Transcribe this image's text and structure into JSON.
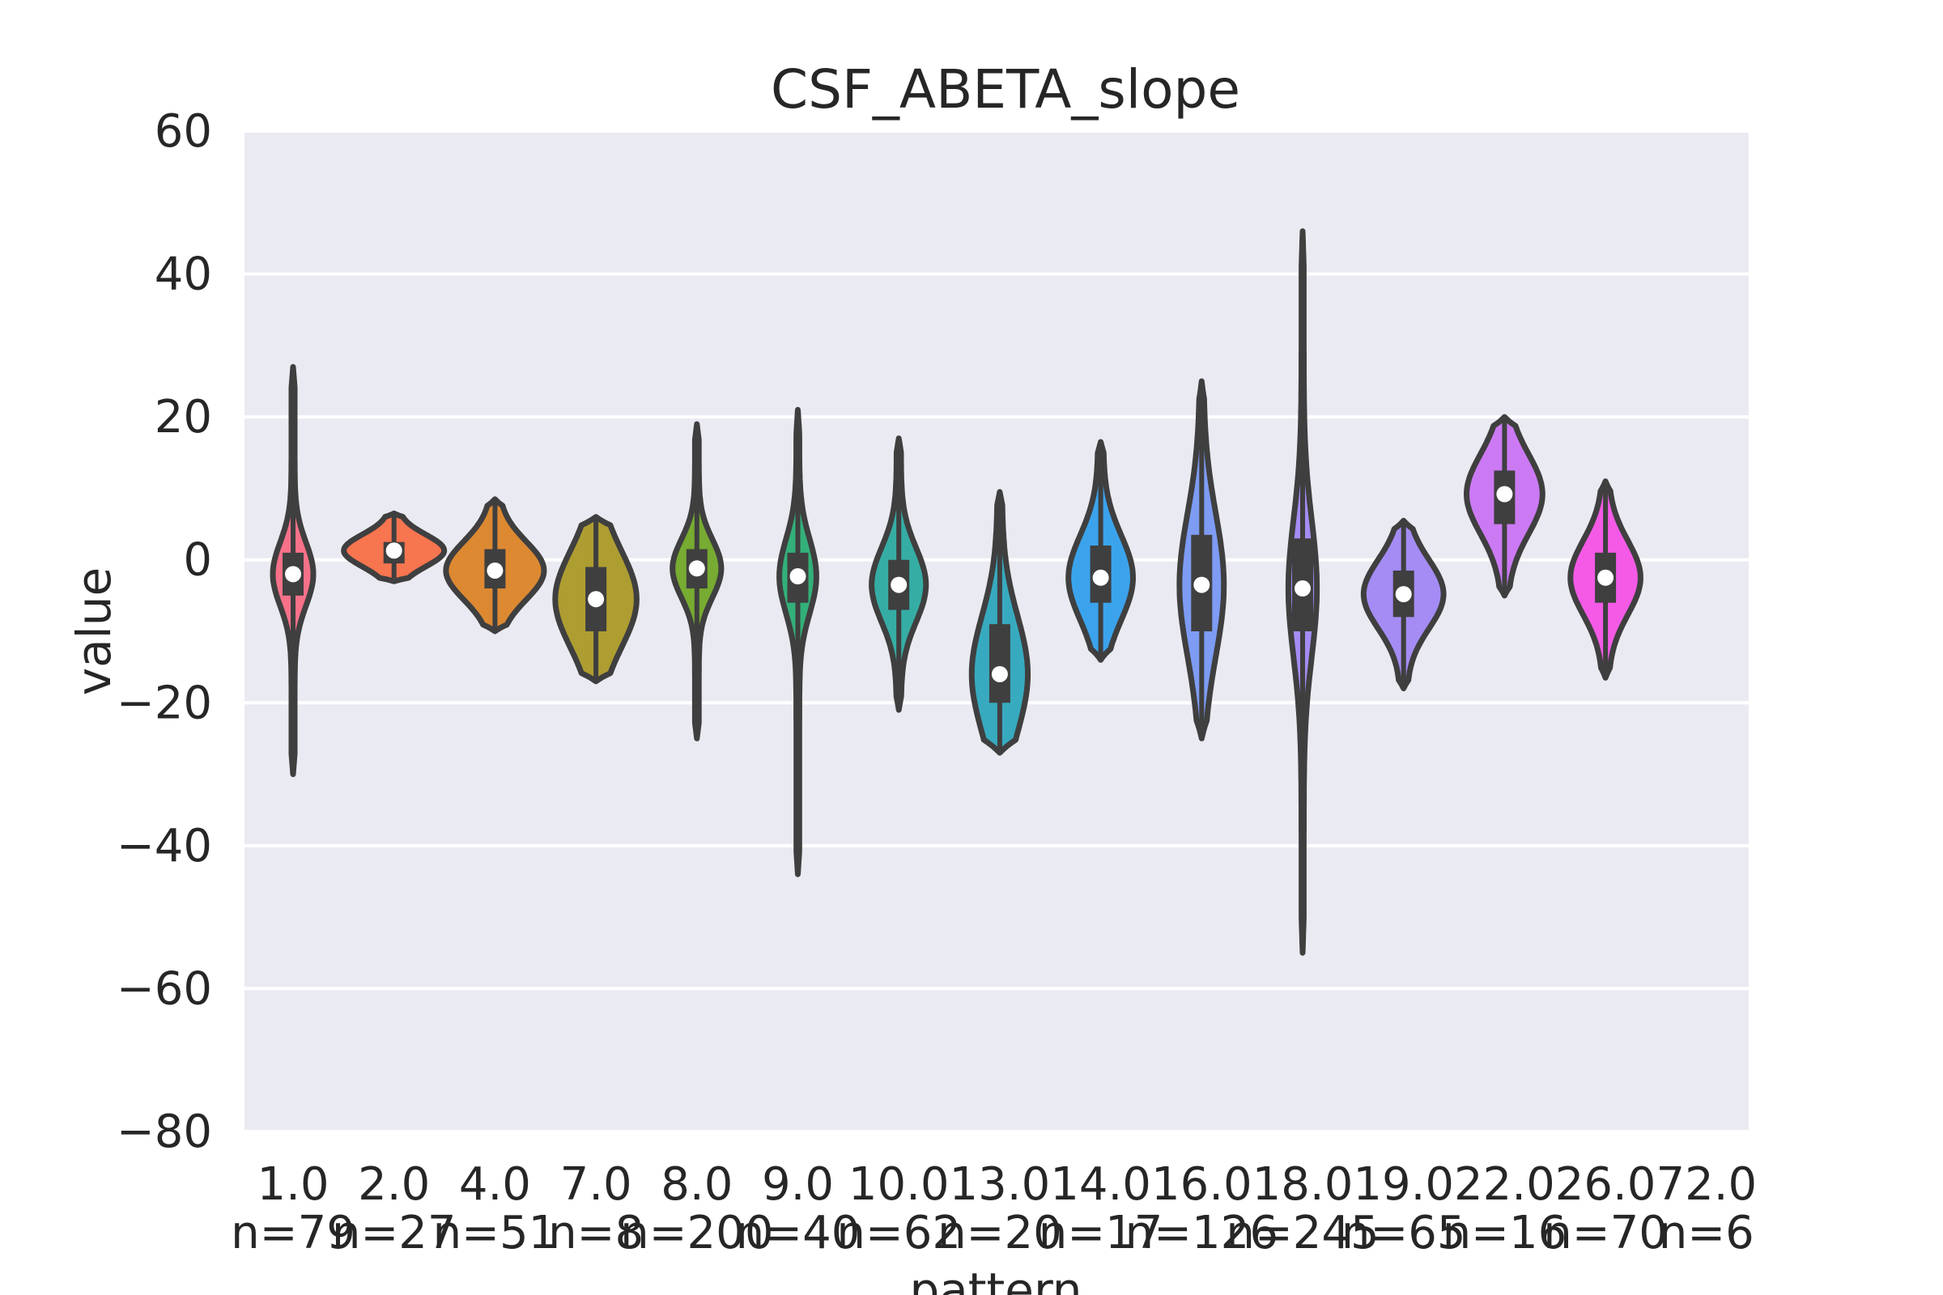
{
  "chart_data": {
    "type": "violin",
    "title": "CSF_ABETA_slope",
    "xlabel": "pattern",
    "ylabel": "value",
    "ylim": [
      -80,
      60
    ],
    "yticks": [
      -80,
      -60,
      -40,
      -20,
      0,
      20,
      40,
      60
    ],
    "grid": true,
    "background": "#eaeaf2",
    "gridColor": "#ffffff",
    "lineColor": "#3f3f3f",
    "categories": [
      "1.0",
      "2.0",
      "4.0",
      "7.0",
      "8.0",
      "9.0",
      "10.0",
      "13.0",
      "14.0",
      "16.0",
      "18.0",
      "19.0",
      "22.0",
      "26.0",
      "72.0"
    ],
    "n_labels": [
      "n=79",
      "n=27",
      "n=51",
      "n=8",
      "n=200",
      "n=40",
      "n=62",
      "n=20",
      "n=17",
      "n=126",
      "n=245",
      "n=65",
      "n=16",
      "n=70",
      "n=6"
    ],
    "violins": [
      {
        "category": "1.0",
        "n": 79,
        "min": -30,
        "max": 27,
        "median": -2,
        "q1": -5,
        "q3": 1,
        "color": "#f77189"
      },
      {
        "category": "2.0",
        "n": 27,
        "min": -3,
        "max": 6.5,
        "median": 1.3,
        "q1": -0.5,
        "q3": 2.5,
        "color": "#f7754f"
      },
      {
        "category": "4.0",
        "n": 51,
        "min": -10,
        "max": 8.5,
        "median": -1.5,
        "q1": -4,
        "q3": 1.5,
        "color": "#dc8932"
      },
      {
        "category": "7.0",
        "n": 8,
        "min": -17,
        "max": 6,
        "median": -5.5,
        "q1": -10,
        "q3": -1,
        "color": "#ae9d31"
      },
      {
        "category": "8.0",
        "n": 200,
        "min": -25,
        "max": 19,
        "median": -1.2,
        "q1": -4,
        "q3": 1.5,
        "color": "#77ab31"
      },
      {
        "category": "9.0",
        "n": 40,
        "min": -44,
        "max": 21,
        "median": -2.3,
        "q1": -6,
        "q3": 1,
        "color": "#33b07a"
      },
      {
        "category": "10.0",
        "n": 62,
        "min": -21,
        "max": 17,
        "median": -3.5,
        "q1": -7,
        "q3": 0,
        "color": "#36ada4"
      },
      {
        "category": "13.0",
        "n": 20,
        "min": -27,
        "max": 9.5,
        "median": -16,
        "q1": -20,
        "q3": -9,
        "color": "#38aabf"
      },
      {
        "category": "14.0",
        "n": 17,
        "min": -14,
        "max": 16.5,
        "median": -2.5,
        "q1": -6,
        "q3": 2,
        "color": "#3ba3ec"
      },
      {
        "category": "16.0",
        "n": 126,
        "min": -25,
        "max": 25,
        "median": -3.5,
        "q1": -10,
        "q3": 3.5,
        "color": "#7e9cf4"
      },
      {
        "category": "18.0",
        "n": 245,
        "min": -55,
        "max": 46,
        "median": -4,
        "q1": -10,
        "q3": 3,
        "color": "#a48cf4"
      },
      {
        "category": "19.0",
        "n": 65,
        "min": -18,
        "max": 5.5,
        "median": -4.8,
        "q1": -8,
        "q3": -1.5,
        "color": "#a48cf4"
      },
      {
        "category": "22.0",
        "n": 16,
        "min": -5,
        "max": 20,
        "median": 9.2,
        "q1": 5,
        "q3": 12.5,
        "color": "#cc7af4"
      },
      {
        "category": "26.0",
        "n": 70,
        "min": -16.5,
        "max": 11,
        "median": -2.5,
        "q1": -6,
        "q3": 1,
        "color": "#f45ae6"
      },
      {
        "category": "72.0",
        "n": 6,
        "min": null,
        "max": null,
        "median": null,
        "q1": null,
        "q3": null,
        "color": "#f565cc"
      }
    ]
  }
}
